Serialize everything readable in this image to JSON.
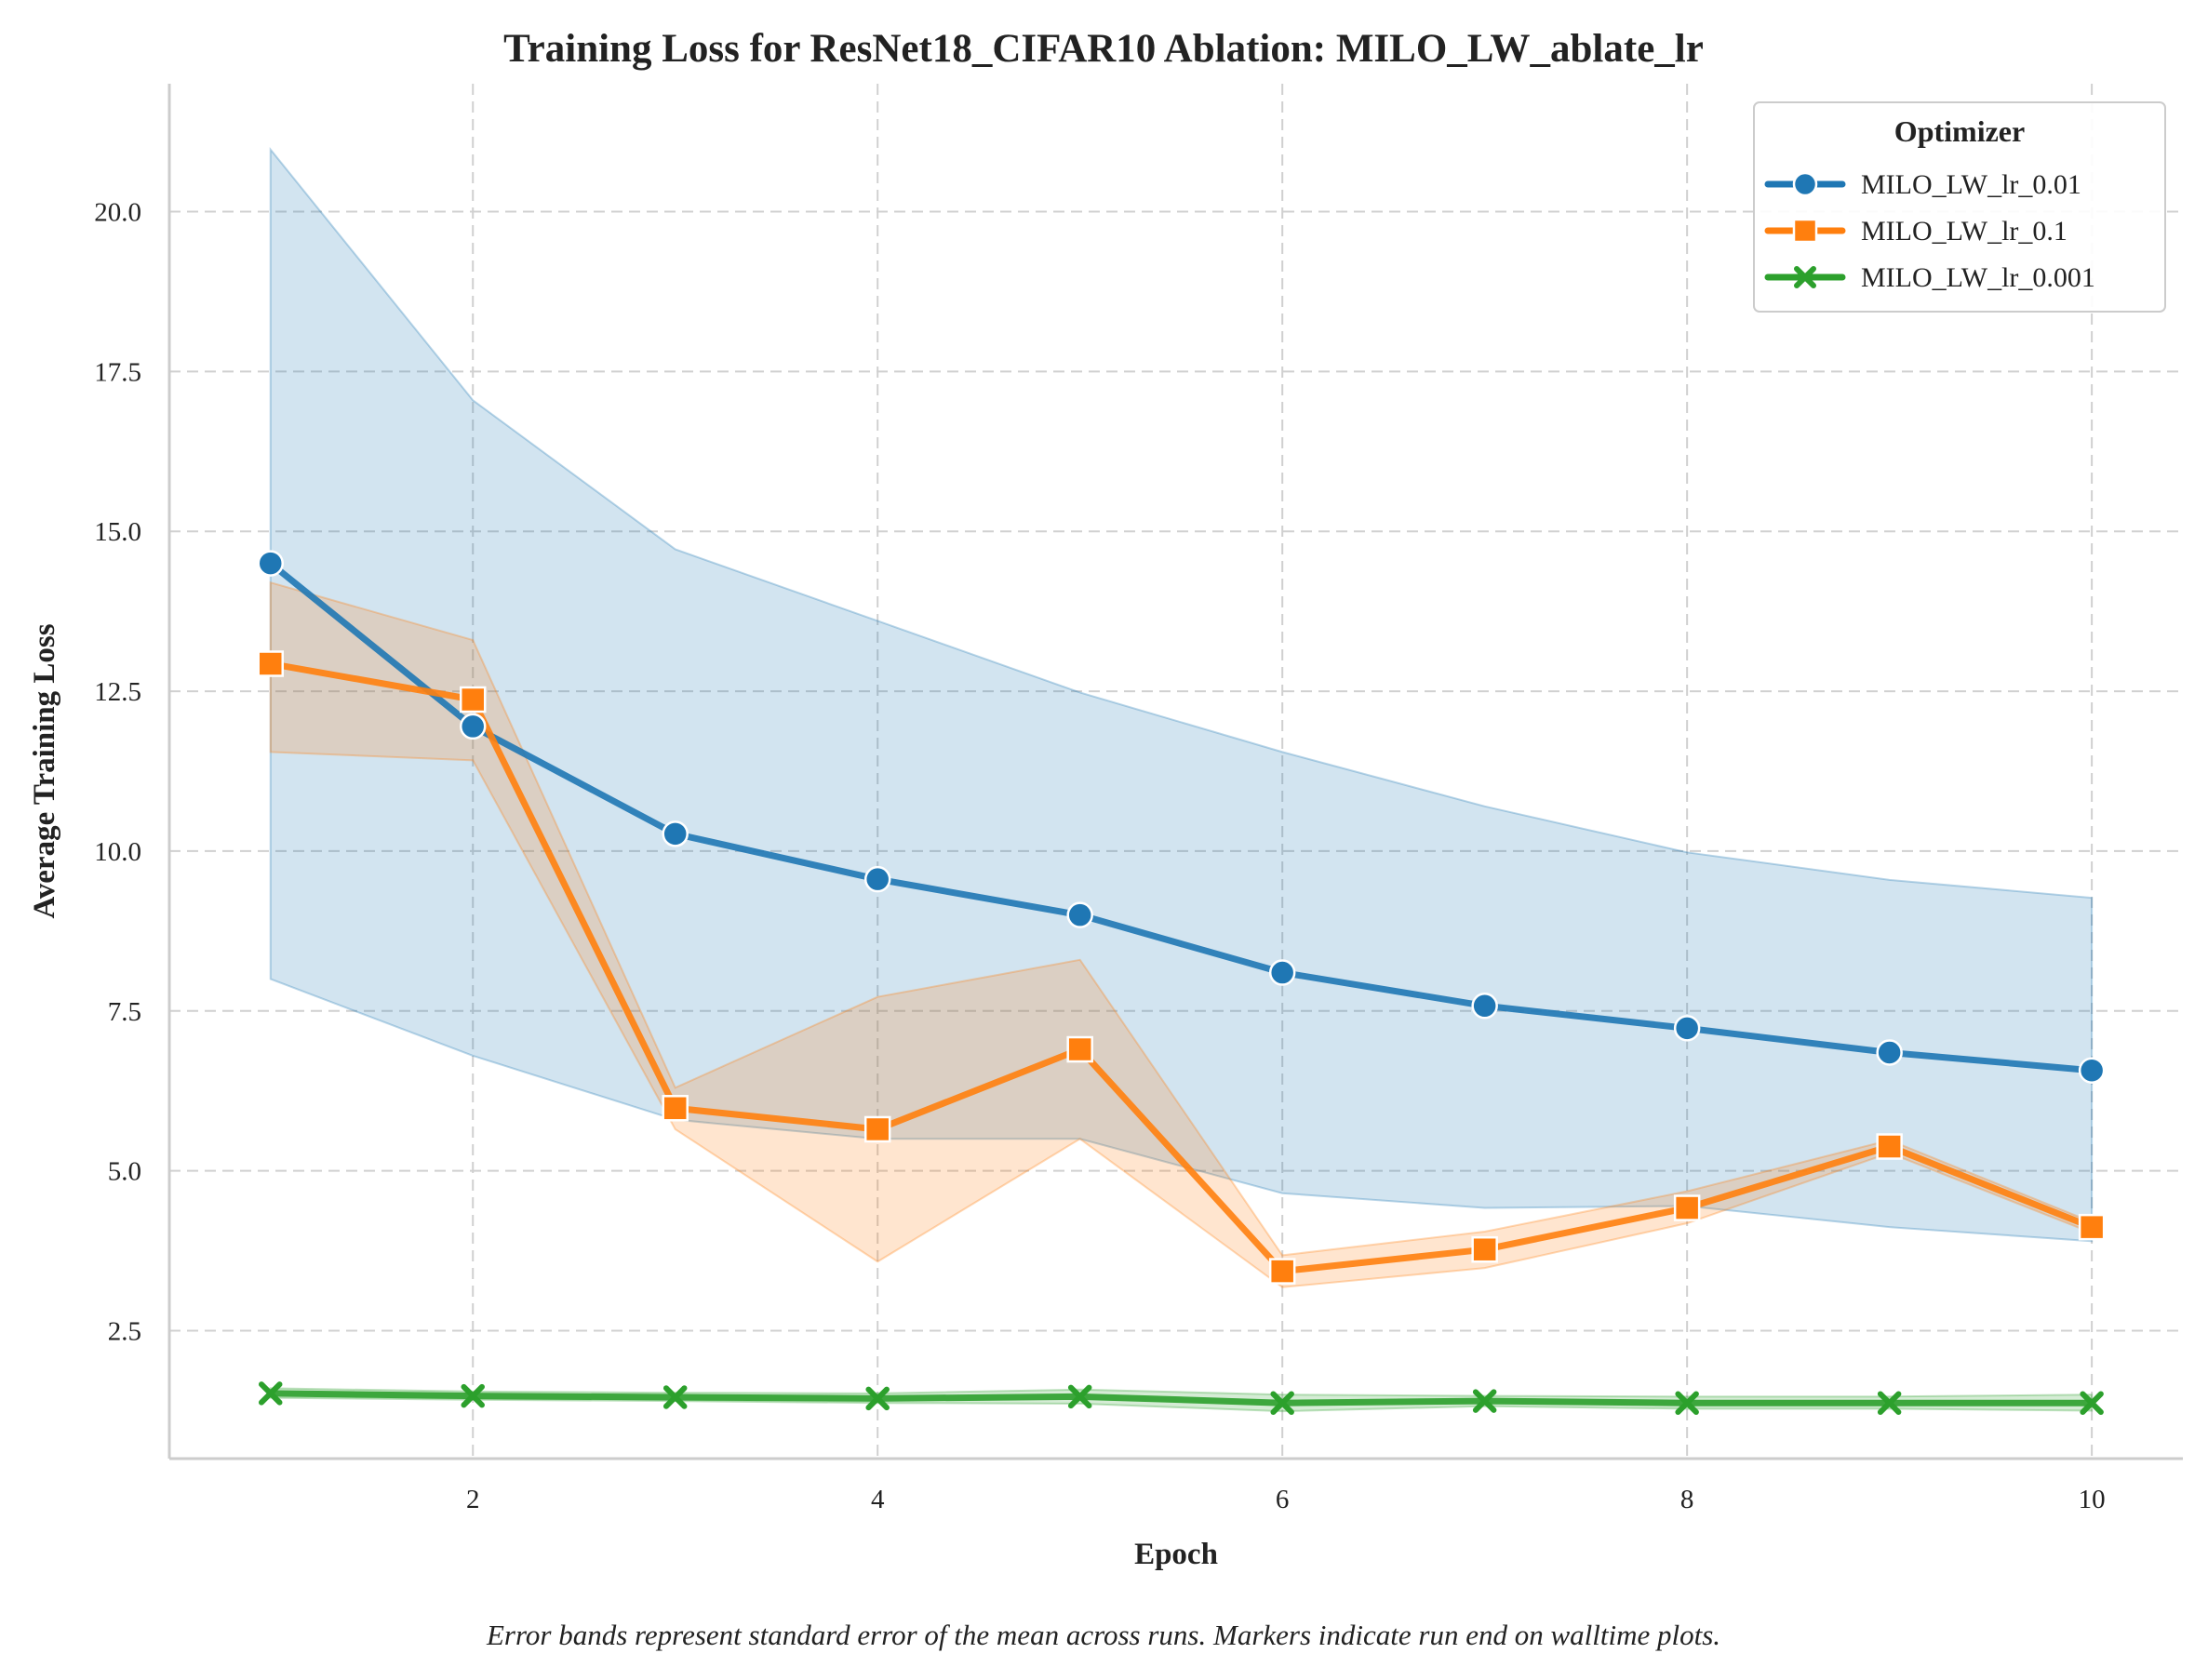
{
  "chart_data": {
    "type": "line",
    "title": "Training Loss for ResNet18_CIFAR10 Ablation: MILO_LW_ablate_lr",
    "xlabel": "Epoch",
    "ylabel": "Average Training Loss",
    "x": [
      1,
      2,
      3,
      4,
      5,
      6,
      7,
      8,
      9,
      10
    ],
    "xlim": [
      0.5,
      10.45
    ],
    "ylim": [
      0.5,
      22.0
    ],
    "xticks": [
      2,
      4,
      6,
      8,
      10
    ],
    "xtick_labels": [
      "2",
      "4",
      "6",
      "8",
      "10"
    ],
    "yticks": [
      2.5,
      5.0,
      7.5,
      10.0,
      12.5,
      15.0,
      17.5,
      20.0
    ],
    "ytick_labels": [
      "2.5",
      "5.0",
      "7.5",
      "10.0",
      "12.5",
      "15.0",
      "17.5",
      "20.0"
    ],
    "grid": true,
    "legend_title": "Optimizer",
    "legend_position": "top-right",
    "series": [
      {
        "name": "MILO_LW_lr_0.01",
        "color": "#1f77b4",
        "marker": "circle",
        "values": [
          14.5,
          11.95,
          10.27,
          9.56,
          9.0,
          8.1,
          7.58,
          7.23,
          6.85,
          6.57
        ],
        "band_lower": [
          8.0,
          6.8,
          5.8,
          5.5,
          5.5,
          4.65,
          4.42,
          4.45,
          4.12,
          3.9
        ],
        "band_upper": [
          20.97,
          17.05,
          14.72,
          13.6,
          12.48,
          11.55,
          10.7,
          9.98,
          9.55,
          9.27
        ]
      },
      {
        "name": "MILO_LW_lr_0.1",
        "color": "#ff7f0e",
        "marker": "square",
        "values": [
          12.93,
          12.37,
          5.98,
          5.65,
          6.9,
          3.43,
          3.77,
          4.42,
          5.38,
          4.12
        ],
        "band_lower": [
          11.55,
          11.42,
          5.65,
          3.58,
          5.5,
          3.18,
          3.48,
          4.18,
          5.28,
          4.03
        ],
        "band_upper": [
          14.2,
          13.3,
          6.3,
          7.72,
          8.3,
          3.68,
          4.05,
          4.68,
          5.48,
          4.2
        ]
      },
      {
        "name": "MILO_LW_lr_0.001",
        "color": "#2ca02c",
        "marker": "x",
        "values": [
          1.52,
          1.48,
          1.46,
          1.44,
          1.47,
          1.37,
          1.4,
          1.37,
          1.37,
          1.37
        ],
        "band_lower": [
          1.45,
          1.42,
          1.4,
          1.37,
          1.36,
          1.24,
          1.32,
          1.28,
          1.28,
          1.25
        ],
        "band_upper": [
          1.6,
          1.55,
          1.53,
          1.52,
          1.58,
          1.5,
          1.48,
          1.47,
          1.47,
          1.5
        ]
      }
    ]
  },
  "caption": "Error bands represent standard error of the mean across runs. Markers indicate run end on walltime plots."
}
